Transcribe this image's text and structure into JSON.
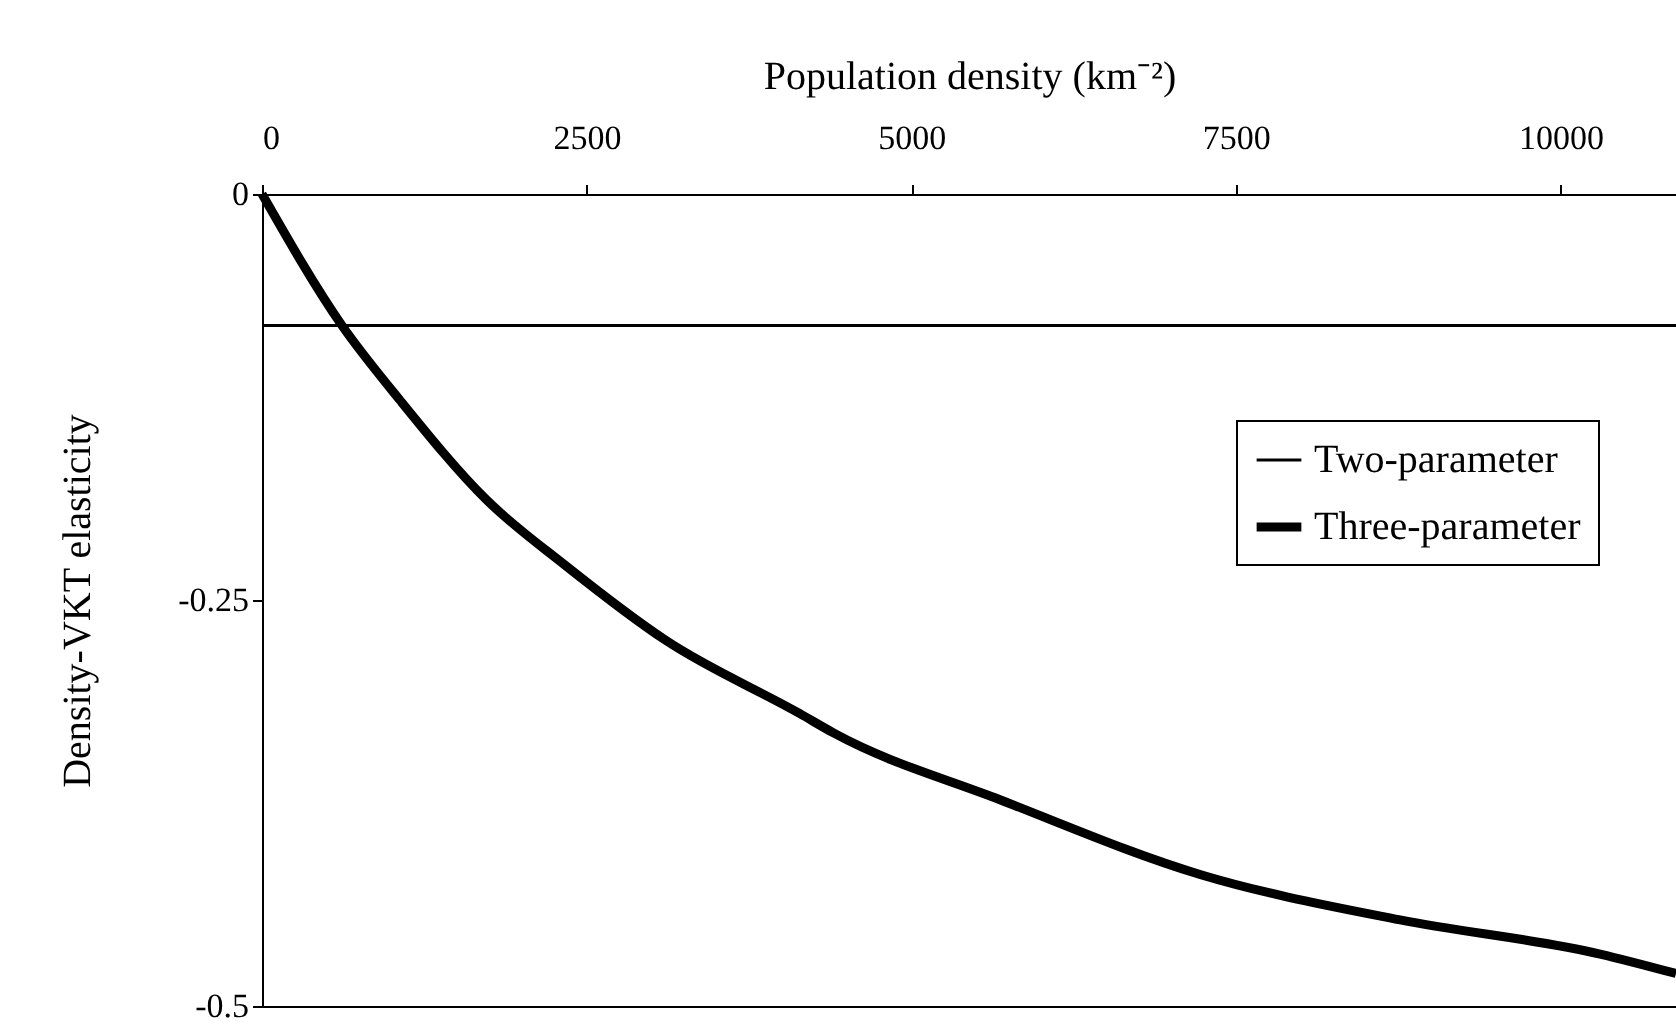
{
  "chart_data": {
    "type": "line",
    "xlabel": "Population density (km⁻²)",
    "ylabel": "Density-VKT elasticity",
    "xlim": [
      0,
      10890
    ],
    "xticks": [
      0,
      2500,
      5000,
      7500,
      10000
    ],
    "ylim": [
      -0.5,
      0
    ],
    "yticks": [
      0,
      -0.25,
      -0.5
    ],
    "legend": "right",
    "grid": false,
    "series": [
      {
        "name": "Two-parameter",
        "color": "#000000",
        "x": [
          0,
          10890
        ],
        "values": [
          -0.081,
          -0.081
        ]
      },
      {
        "name": "Three-parameter",
        "color": "#000000",
        "x": [
          0,
          616,
          1063,
          1725,
          2341,
          3112,
          4143,
          4405,
          5684,
          7224,
          8765,
          10305,
          10890
        ],
        "values": [
          0,
          -0.081,
          -0.127,
          -0.188,
          -0.229,
          -0.275,
          -0.32,
          -0.332,
          -0.373,
          -0.419,
          -0.447,
          -0.468,
          -0.48
        ]
      }
    ]
  }
}
